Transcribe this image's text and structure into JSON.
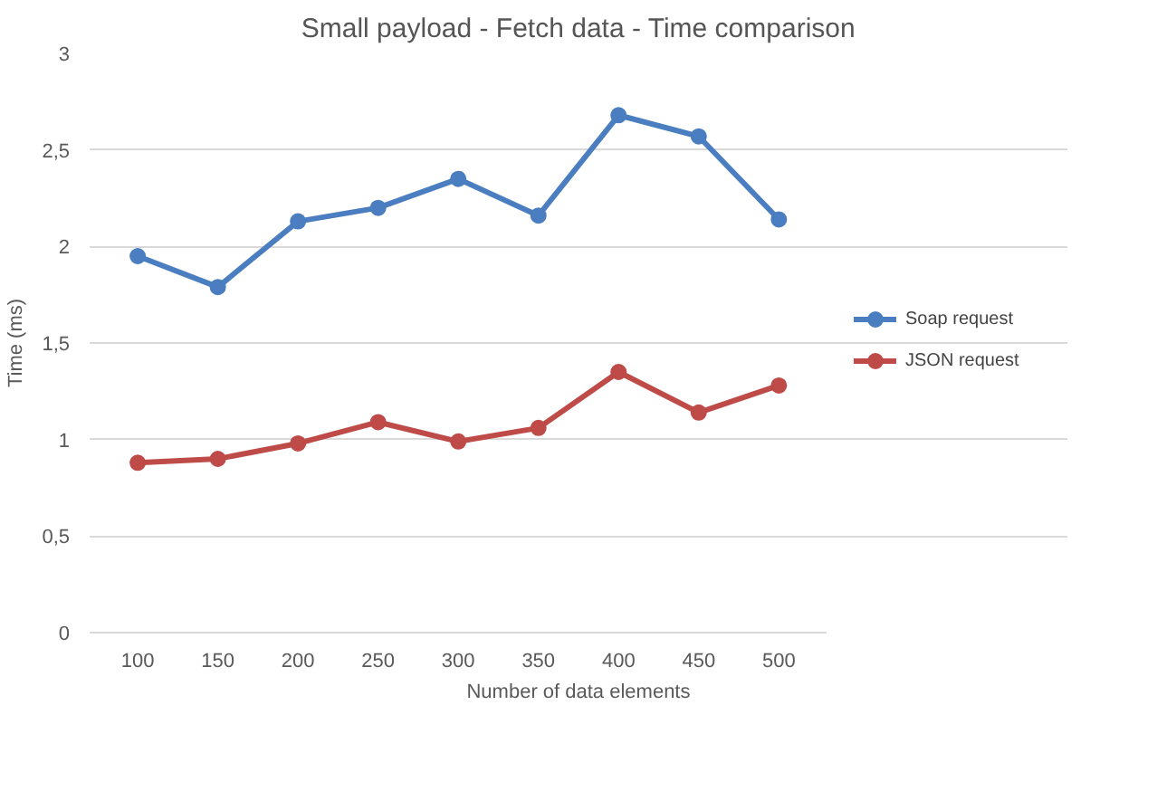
{
  "chart_data": {
    "type": "line",
    "title": "Small payload - Fetch data - Time comparison",
    "xlabel": "Number of data elements",
    "ylabel": "Time (ms)",
    "categories": [
      "100",
      "150",
      "200",
      "250",
      "300",
      "350",
      "400",
      "450",
      "500"
    ],
    "series": [
      {
        "name": "Soap request",
        "color": "#4a7ec0",
        "values": [
          1.95,
          1.79,
          2.13,
          2.2,
          2.35,
          2.16,
          2.68,
          2.57,
          2.14
        ]
      },
      {
        "name": "JSON request",
        "color": "#be4b48",
        "values": [
          0.88,
          0.9,
          0.98,
          1.09,
          0.99,
          1.06,
          1.35,
          1.14,
          1.28
        ]
      }
    ],
    "ylim": [
      0,
      3
    ],
    "yticks": [
      0,
      {
        "value": 0.5,
        "label": "0,5"
      },
      1,
      {
        "value": 1.5,
        "label": "1,5"
      },
      2,
      {
        "value": 2.5,
        "label": "2,5"
      },
      3
    ],
    "grid": "y",
    "legend": "right",
    "marker": "circle",
    "line_style": "solid"
  }
}
